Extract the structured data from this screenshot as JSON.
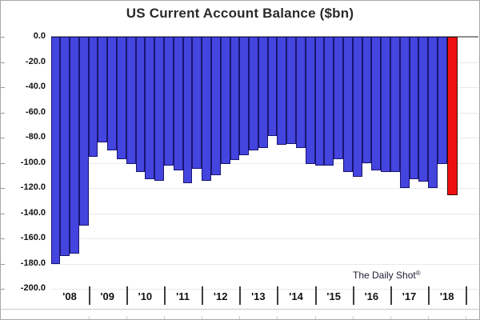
{
  "chart_data": {
    "type": "bar",
    "title": "US Current Account Balance ($bn)",
    "frequency": "quarterly",
    "ylim": [
      -200,
      0
    ],
    "grid": "horizontal",
    "legend": "none",
    "y_tick_labels": [
      "0.0",
      "-20.0",
      "-40.0",
      "-60.0",
      "-80.0",
      "-100.0",
      "-120.0",
      "-140.0",
      "-160.0",
      "-180.0",
      "-200.0"
    ],
    "y_tick_values": [
      0,
      -20,
      -40,
      -60,
      -80,
      -100,
      -120,
      -140,
      -160,
      -180,
      -200
    ],
    "x_year_labels": [
      "'08",
      "'09",
      "'10",
      "'11",
      "'12",
      "'13",
      "'14",
      "'15",
      "'16",
      "'17",
      "'18"
    ],
    "x": [
      "08Q1",
      "08Q2",
      "08Q3",
      "08Q4",
      "09Q1",
      "09Q2",
      "09Q3",
      "09Q4",
      "10Q1",
      "10Q2",
      "10Q3",
      "10Q4",
      "11Q1",
      "11Q2",
      "11Q3",
      "11Q4",
      "12Q1",
      "12Q2",
      "12Q3",
      "12Q4",
      "13Q1",
      "13Q2",
      "13Q3",
      "13Q4",
      "14Q1",
      "14Q2",
      "14Q3",
      "14Q4",
      "15Q1",
      "15Q2",
      "15Q3",
      "15Q4",
      "16Q1",
      "16Q2",
      "16Q3",
      "16Q4",
      "17Q1",
      "17Q2",
      "17Q3",
      "17Q4",
      "18Q1",
      "18Q2",
      "18Q3"
    ],
    "values": [
      -180,
      -174,
      -172,
      -150,
      -95,
      -84,
      -90,
      -97,
      -101,
      -107,
      -113,
      -114,
      -102,
      -106,
      -116,
      -105,
      -114,
      -110,
      -101,
      -98,
      -94,
      -90,
      -88,
      -79,
      -86,
      -85,
      -88,
      -101,
      -102,
      -102,
      -97,
      -107,
      -111,
      -100,
      -106,
      -107,
      -107,
      -120,
      -113,
      -115,
      -120,
      -101,
      -126
    ],
    "highlight_last": true,
    "bar_color": "#4444df",
    "bar_border_color": "#1a1670",
    "highlight_color": "#ee1010",
    "highlight_border_color": "#3a0c0c",
    "source_text": "The Daily Shot",
    "source_mark": "®"
  }
}
